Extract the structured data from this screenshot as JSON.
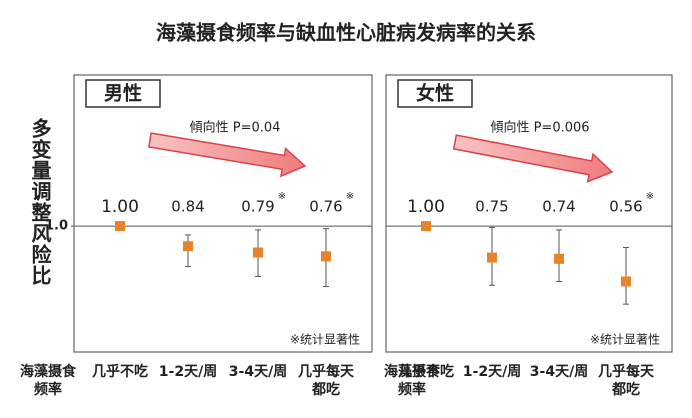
{
  "title": "海藻摄食频率与缺血性心脏病发病率的关系",
  "y_axis_label": "多变量调整风险比",
  "x_axis_label": "海藻摄食频率",
  "chart_data": [
    {
      "type": "errorbar",
      "title": "男性",
      "annotation": "傾向性 P=0.04",
      "note": "※统计显著性",
      "categories": [
        "几乎不吃",
        "1-2天/周",
        "3-4天/周",
        "几乎每天都吃"
      ],
      "series": [
        {
          "values": [
            1.0,
            0.84,
            0.79,
            0.76
          ],
          "value_labels": [
            "1.00",
            "0.84",
            "0.79",
            "0.76"
          ],
          "ci_low": [
            null,
            0.68,
            0.6,
            0.52
          ],
          "ci_high": [
            null,
            0.93,
            0.97,
            0.98
          ],
          "color": "#e8832a"
        }
      ],
      "significant": [
        false,
        false,
        true,
        true
      ],
      "sig_mark": "※",
      "ylim": [
        0,
        2.2
      ],
      "yticks": [
        {
          "value": 1,
          "label": "1.0"
        }
      ],
      "reference_line": 1
    },
    {
      "type": "errorbar",
      "title": "女性",
      "annotation": "傾向性 P=0.006",
      "note": "※统计显著性",
      "categories": [
        "几乎不吃",
        "1-2天/周",
        "3-4天/周",
        "几乎每天都吃"
      ],
      "series": [
        {
          "values": [
            1.0,
            0.75,
            0.74,
            0.56
          ],
          "value_labels": [
            "1.00",
            "0.75",
            "0.74",
            "0.56"
          ],
          "ci_low": [
            null,
            0.53,
            0.56,
            0.38
          ],
          "ci_high": [
            null,
            0.99,
            0.97,
            0.83
          ],
          "color": "#e8832a"
        }
      ],
      "significant": [
        false,
        false,
        false,
        true
      ],
      "sig_mark": "※",
      "ylim": [
        0,
        2.2
      ],
      "reference_line": 1
    }
  ]
}
